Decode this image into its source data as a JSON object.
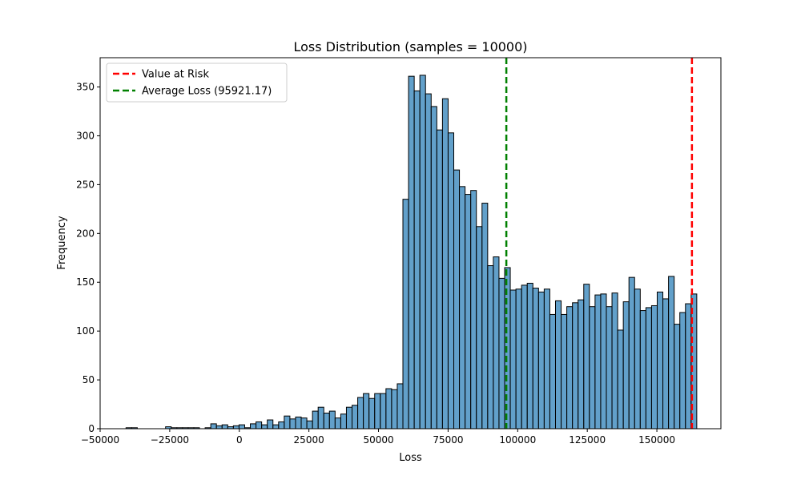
{
  "chart_data": {
    "type": "bar",
    "title": "Loss Distribution (samples = 10000)",
    "xlabel": "Loss",
    "ylabel": "Frequency",
    "xlim": [
      -50000,
      173000
    ],
    "ylim": [
      0,
      380
    ],
    "x_ticks": [
      -50000,
      -25000,
      0,
      25000,
      50000,
      75000,
      100000,
      125000,
      150000
    ],
    "x_tick_labels": [
      "−50000",
      "−25000",
      "0",
      "25000",
      "50000",
      "75000",
      "100000",
      "125000",
      "150000"
    ],
    "y_ticks": [
      0,
      50,
      100,
      150,
      200,
      250,
      300,
      350
    ],
    "y_tick_labels": [
      "0",
      "50",
      "100",
      "150",
      "200",
      "250",
      "300",
      "350"
    ],
    "bin_start": -40700,
    "bin_width": 2030,
    "counts": [
      1,
      1,
      0,
      0,
      0,
      0,
      0,
      2,
      1,
      1,
      1,
      1,
      1,
      0,
      1,
      5,
      3,
      4,
      2,
      3,
      4,
      1,
      5,
      7,
      4,
      9,
      4,
      7,
      13,
      10,
      12,
      11,
      8,
      18,
      22,
      16,
      18,
      11,
      15,
      22,
      24,
      32,
      36,
      31,
      36,
      36,
      41,
      40,
      46,
      235,
      361,
      346,
      362,
      343,
      330,
      306,
      338,
      303,
      265,
      248,
      240,
      244,
      207,
      231,
      167,
      176,
      154,
      165,
      142,
      143,
      147,
      149,
      144,
      140,
      143,
      117,
      131,
      117,
      125,
      129,
      132,
      148,
      125,
      137,
      138,
      125,
      139,
      101,
      130,
      155,
      143,
      121,
      124,
      126,
      140,
      133,
      156,
      107,
      119,
      128,
      138
    ],
    "bar_color": "#1f77b4",
    "bar_edge_color": "#000000",
    "grid": false,
    "legend_position": "upper left",
    "reference_lines": [
      {
        "label": "Value at Risk",
        "x": 162600,
        "color": "#ff0000",
        "style": "dashed"
      },
      {
        "label": "Average Loss (95921.17)",
        "x": 95921.17,
        "color": "#008000",
        "style": "dashed"
      }
    ]
  }
}
